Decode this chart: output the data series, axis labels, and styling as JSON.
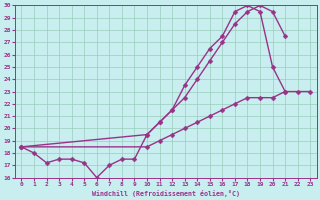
{
  "xlabel": "Windchill (Refroidissement éolien,°C)",
  "bg_color": "#c8eef0",
  "line_color": "#993388",
  "grid_color": "#99ccbb",
  "xlim": [
    -0.5,
    23.5
  ],
  "ylim": [
    16,
    30
  ],
  "xticks": [
    0,
    1,
    2,
    3,
    4,
    5,
    6,
    7,
    8,
    9,
    10,
    11,
    12,
    13,
    14,
    15,
    16,
    17,
    18,
    19,
    20,
    21,
    22,
    23
  ],
  "yticks": [
    16,
    17,
    18,
    19,
    20,
    21,
    22,
    23,
    24,
    25,
    26,
    27,
    28,
    29,
    30
  ],
  "line1_x": [
    0,
    1,
    2,
    3,
    4,
    5,
    6,
    7,
    8,
    9,
    10,
    11,
    12,
    13,
    14,
    15,
    16,
    17,
    18,
    19,
    20,
    21
  ],
  "line1_y": [
    18.5,
    18.0,
    17.2,
    17.5,
    17.5,
    17.2,
    16.0,
    17.0,
    17.5,
    17.5,
    19.5,
    20.5,
    21.5,
    23.5,
    25.0,
    26.5,
    27.5,
    29.5,
    30.0,
    29.5,
    25.0,
    23.0
  ],
  "line2_x": [
    0,
    10,
    11,
    12,
    13,
    14,
    15,
    16,
    17,
    18,
    19,
    20,
    21
  ],
  "line2_y": [
    18.5,
    19.5,
    20.5,
    21.5,
    22.5,
    24.0,
    25.5,
    27.0,
    28.5,
    29.5,
    30.0,
    29.5,
    27.5
  ],
  "line3_x": [
    0,
    10,
    11,
    12,
    13,
    14,
    15,
    16,
    17,
    18,
    19,
    20,
    21,
    22,
    23
  ],
  "line3_y": [
    18.5,
    18.5,
    19.0,
    19.5,
    20.0,
    20.5,
    21.0,
    21.5,
    22.0,
    22.5,
    22.5,
    22.5,
    23.0,
    23.0,
    23.0
  ],
  "marker": "D",
  "markersize": 2.5,
  "linewidth": 1.0
}
